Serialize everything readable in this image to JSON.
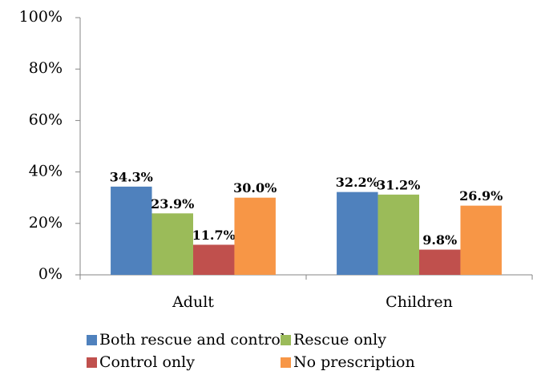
{
  "chart_data": {
    "type": "bar",
    "categories": [
      "Adult",
      "Children"
    ],
    "series": [
      {
        "name": "Both rescue and control",
        "color": "#4f81bd",
        "values": [
          34.3,
          32.2
        ],
        "value_labels": [
          "34.3%",
          "32.2%"
        ]
      },
      {
        "name": "Rescue only",
        "color": "#9bbb59",
        "values": [
          23.9,
          31.2
        ],
        "value_labels": [
          "23.9%",
          "31.2%"
        ]
      },
      {
        "name": "Control only",
        "color": "#c0504d",
        "values": [
          11.7,
          9.8
        ],
        "value_labels": [
          "11.7%",
          "9.8%"
        ]
      },
      {
        "name": "No prescription",
        "color": "#f79646",
        "values": [
          30.0,
          26.9
        ],
        "value_labels": [
          "30.0%",
          "26.9%"
        ]
      }
    ],
    "ylim": [
      0,
      100
    ],
    "yticks": [
      {
        "value": 0,
        "label": "0%"
      },
      {
        "value": 20,
        "label": "20%"
      },
      {
        "value": 40,
        "label": "40%"
      },
      {
        "value": 60,
        "label": "60%"
      },
      {
        "value": 80,
        "label": "80%"
      },
      {
        "value": 100,
        "label": "100%"
      }
    ],
    "grid": false,
    "legend": "bottom"
  }
}
